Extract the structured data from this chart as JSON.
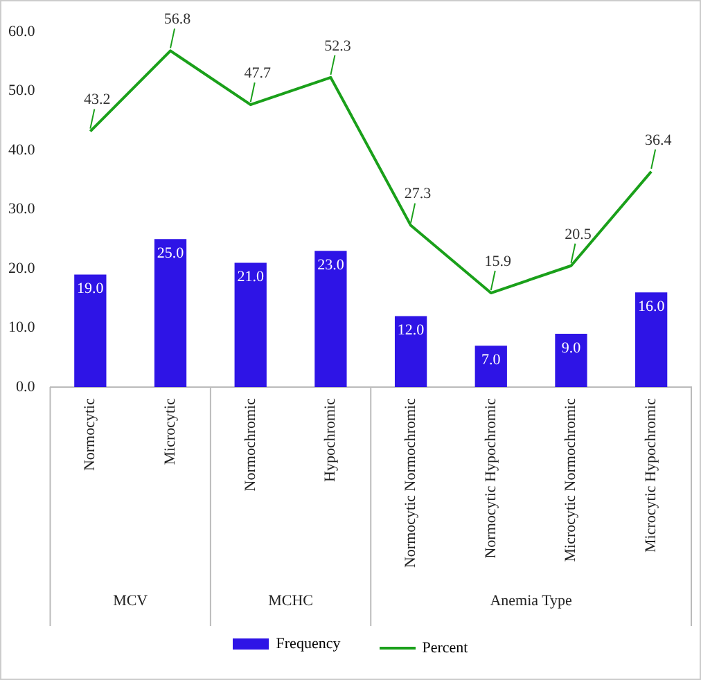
{
  "chart_data": {
    "type": "bar",
    "categories": [
      "Normocytic",
      "Microcytic",
      "Normochromic",
      "Hypochromic",
      "Normocytic Normochromic",
      "Normocytic Hypochromic",
      "Microcytic Normochromic",
      "Microcytic Hypochromic"
    ],
    "series": [
      {
        "name": "Frequency",
        "color": "#2e14e6",
        "values": [
          19.0,
          25.0,
          21.0,
          23.0,
          12.0,
          7.0,
          9.0,
          16.0
        ],
        "value_labels": [
          "19.0",
          "25.0",
          "21.0",
          "23.0",
          "12.0",
          "7.0",
          "9.0",
          "16.0"
        ]
      },
      {
        "name": "Percent",
        "type": "line",
        "color": "#1aa01a",
        "values": [
          43.2,
          56.8,
          47.7,
          52.3,
          27.3,
          15.9,
          20.5,
          36.4
        ],
        "value_labels": [
          "43.2",
          "56.8",
          "47.7",
          "52.3",
          "27.3",
          "15.9",
          "20.5",
          "36.4"
        ]
      }
    ],
    "ylim": [
      0,
      60
    ],
    "yticks": [
      {
        "value": 0,
        "label": "0.0"
      },
      {
        "value": 10,
        "label": "10.0"
      },
      {
        "value": 20,
        "label": "20.0"
      },
      {
        "value": 30,
        "label": "30.0"
      },
      {
        "value": 40,
        "label": "40.0"
      },
      {
        "value": 50,
        "label": "50.0"
      },
      {
        "value": 60,
        "label": "60.0"
      }
    ],
    "grid": false,
    "legend": "bottom",
    "marker": "none",
    "annotations": [
      "MCV",
      "MCHC",
      "Anemia Type"
    ]
  }
}
